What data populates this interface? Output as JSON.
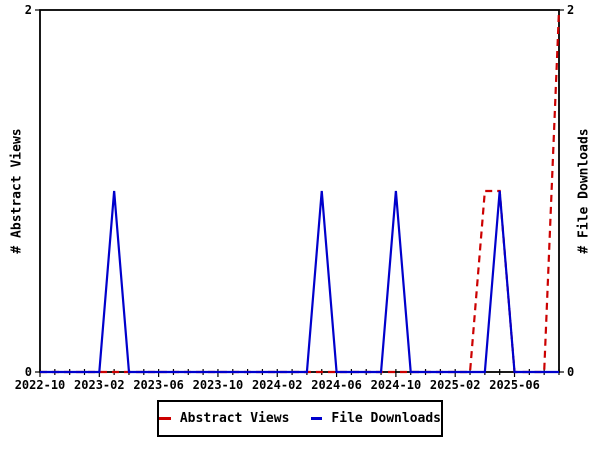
{
  "chart_data": {
    "type": "line",
    "title": "",
    "xlabel": "",
    "ylabel_left": "# Abstract Views",
    "ylabel_right": "# File Downloads",
    "ylim": [
      0,
      2
    ],
    "y_ticks": [
      0,
      2
    ],
    "grid": false,
    "legend_position": "bottom-center",
    "x_months": [
      "2022-10",
      "2022-11",
      "2022-12",
      "2023-01",
      "2023-02",
      "2023-03",
      "2023-04",
      "2023-05",
      "2023-06",
      "2023-07",
      "2023-08",
      "2023-09",
      "2023-10",
      "2023-11",
      "2023-12",
      "2024-01",
      "2024-02",
      "2024-03",
      "2024-04",
      "2024-05",
      "2024-06",
      "2024-07",
      "2024-08",
      "2024-09",
      "2024-10",
      "2024-11",
      "2024-12",
      "2025-01",
      "2025-02",
      "2025-03",
      "2025-04",
      "2025-05",
      "2025-06",
      "2025-07",
      "2025-08",
      "2025-09"
    ],
    "x_tick_labels": [
      "2022-10",
      "2023-02",
      "2023-06",
      "2023-10",
      "2024-02",
      "2024-06",
      "2024-10",
      "2025-02",
      "2025-06"
    ],
    "series": [
      {
        "name": "Abstract Views",
        "color": "#cc0000",
        "dash": "dashed",
        "axis": "left",
        "values": [
          0,
          0,
          0,
          0,
          0,
          0,
          0,
          0,
          0,
          0,
          0,
          0,
          0,
          0,
          0,
          0,
          0,
          0,
          0,
          0,
          0,
          0,
          0,
          0,
          0,
          0,
          0,
          0,
          0,
          0,
          1,
          1,
          0,
          0,
          0,
          2
        ]
      },
      {
        "name": "File Downloads",
        "color": "#0000cc",
        "dash": "solid",
        "axis": "right",
        "values": [
          0,
          0,
          0,
          0,
          0,
          1,
          0,
          0,
          0,
          0,
          0,
          0,
          0,
          0,
          0,
          0,
          0,
          0,
          0,
          1,
          0,
          0,
          0,
          0,
          1,
          0,
          0,
          0,
          0,
          0,
          0,
          1,
          0,
          0,
          0,
          0
        ]
      }
    ],
    "colors": {
      "abstract_views": "#cc0000",
      "file_downloads": "#0000cc",
      "axis": "#000000",
      "background": "#ffffff"
    }
  }
}
